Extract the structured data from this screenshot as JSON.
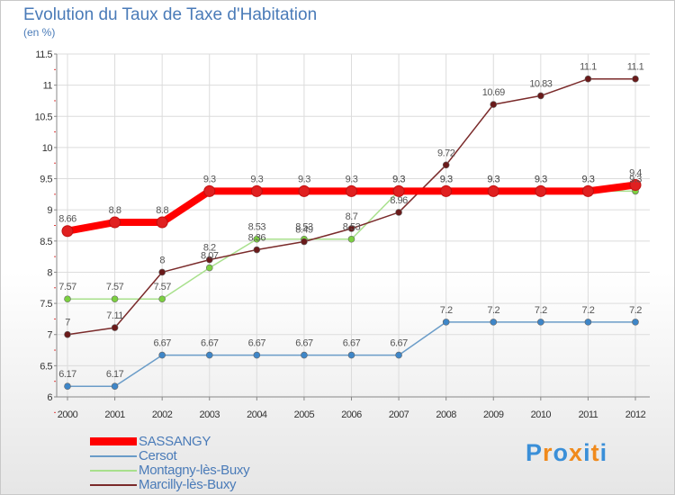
{
  "chart_data": {
    "type": "line",
    "title": "Evolution du Taux de Taxe d'Habitation",
    "subtitle": "(en %)",
    "x": [
      "2000",
      "2001",
      "2002",
      "2003",
      "2004",
      "2005",
      "2006",
      "2007",
      "2008",
      "2009",
      "2010",
      "2011",
      "2012"
    ],
    "ylim": [
      6,
      11.5
    ],
    "yticks": [
      "6",
      "6.5",
      "7",
      "7.5",
      "8",
      "8.5",
      "9",
      "9.5",
      "10",
      "10.5",
      "11",
      "11.5"
    ],
    "grid": true,
    "legend_position": "bottom-left",
    "series": [
      {
        "name": "SASSANGY",
        "color": "#ff0000",
        "marker": "#e02020",
        "values": [
          8.66,
          8.8,
          8.8,
          9.3,
          9.3,
          9.3,
          9.3,
          9.3,
          9.3,
          9.3,
          9.3,
          9.3,
          9.4
        ],
        "labels": [
          "8.66",
          "8.8",
          "8.8",
          "9.3",
          "9.3",
          "9.3",
          "9.3",
          "9.3",
          "9.3",
          "9.3",
          "9.3",
          "9.3",
          "9.4"
        ]
      },
      {
        "name": "Cersot",
        "color": "#6a9cc8",
        "marker": "#3e86c8",
        "values": [
          6.17,
          6.17,
          6.67,
          6.67,
          6.67,
          6.67,
          6.67,
          6.67,
          7.2,
          7.2,
          7.2,
          7.2,
          7.2
        ],
        "labels": [
          "6.17",
          "6.17",
          "6.67",
          "6.67",
          "6.67",
          "6.67",
          "6.67",
          "6.67",
          "7.2",
          "7.2",
          "7.2",
          "7.2",
          "7.2"
        ]
      },
      {
        "name": "Montagny-lès-Buxy",
        "color": "#a8e08c",
        "marker": "#7cd040",
        "values": [
          7.57,
          7.57,
          7.57,
          8.07,
          8.53,
          8.53,
          8.53,
          9.3,
          9.3,
          9.3,
          9.3,
          9.3,
          9.3
        ],
        "labels": [
          "7.57",
          "7.57",
          "7.57",
          "8.07",
          "8.53",
          "8.53",
          "8.53",
          "9.3",
          "9.3",
          "9.3",
          "9.3",
          "9.3",
          "9.3"
        ]
      },
      {
        "name": "Marcilly-lès-Buxy",
        "color": "#7a2a2a",
        "marker": "#6a1a1a",
        "values": [
          7,
          7.11,
          8,
          8.2,
          8.36,
          8.49,
          8.7,
          8.96,
          9.72,
          10.69,
          10.83,
          11.1,
          11.1
        ],
        "labels": [
          "7",
          "7.11",
          "8",
          "8.2",
          "8.36",
          "8.49",
          "8.7",
          "8.96",
          "9.72",
          "10.69",
          "10.83",
          "11.1",
          "11.1"
        ]
      }
    ]
  },
  "logo": {
    "letters": [
      "P",
      "r",
      "o",
      "x",
      "i",
      "t",
      "i"
    ],
    "colors": [
      "#3a8fd8",
      "#f08a1c",
      "#3a8fd8",
      "#f08a1c",
      "#3a8fd8",
      "#f08a1c",
      "#3a8fd8"
    ]
  }
}
